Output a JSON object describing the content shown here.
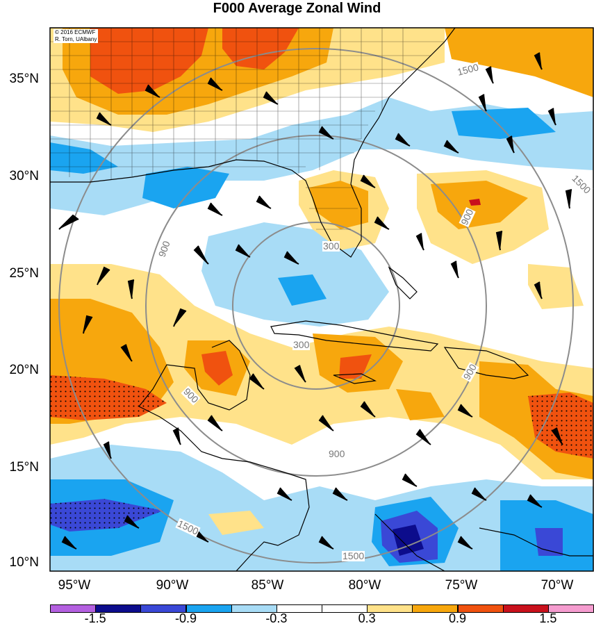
{
  "title": "F000 Average Zonal Wind",
  "credit": {
    "line1": "© 2016 ECMWF",
    "line2": "R. Torn, UAlbany"
  },
  "lat_labels": [
    "35°N",
    "30°N",
    "25°N",
    "20°N",
    "15°N",
    "10°N"
  ],
  "lon_labels": [
    "95°W",
    "90°W",
    "85°W",
    "80°W",
    "75°W",
    "70°W"
  ],
  "contour_labels": [
    "300",
    "300",
    "900",
    "900",
    "900",
    "900",
    "900",
    "1500",
    "1500",
    "1500",
    "1500"
  ],
  "colorbar": {
    "labels": [
      "-1.5",
      "-0.9",
      "-0.3",
      "0.3",
      "0.9",
      "1.5"
    ],
    "colors": [
      "#b460e0",
      "#0c0c8c",
      "#3a48d6",
      "#1aa4f0",
      "#a8dcf6",
      "#ffffff",
      "#ffffff",
      "#ffe28a",
      "#f7a70d",
      "#f0520f",
      "#c9111c",
      "#f59ccf"
    ]
  },
  "legend_values": {
    "min": -1.5,
    "max": 1.5,
    "step": 0.3
  }
}
